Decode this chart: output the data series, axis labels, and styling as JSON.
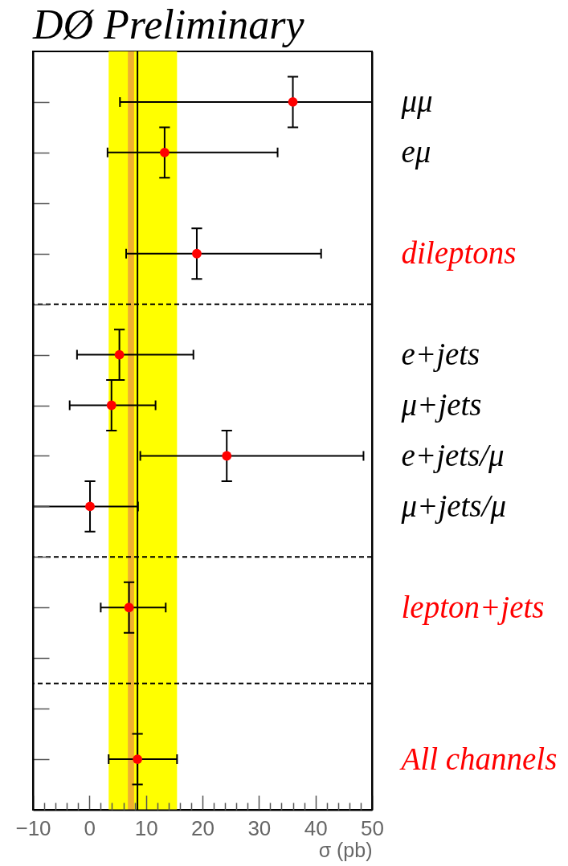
{
  "chart_data": {
    "type": "scatter",
    "orientation": "horizontal",
    "title": "DØ Preliminary",
    "xlabel": "σ (pb)",
    "categories": [
      "μμ",
      "eμ",
      null,
      "dileptons",
      null,
      "e+jets",
      "μ+jets",
      "e+jets/μ",
      "μ+jets/μ",
      null,
      "lepton+jets",
      null,
      null,
      "All channels"
    ],
    "series": [
      {
        "color": "#ff0000",
        "values": [
          36.0,
          13.3,
          null,
          null,
          null,
          5.3,
          3.9,
          24.3,
          0.1,
          null,
          null,
          null,
          null,
          null
        ],
        "errors": [
          [
            5.4,
            50
          ],
          [
            3.2,
            33.3
          ],
          null,
          null,
          null,
          [
            -2.2,
            18.4
          ],
          [
            -3.5,
            11.7
          ],
          [
            9.0,
            48.5
          ],
          [
            -10,
            8.6
          ],
          null,
          null,
          null,
          null,
          null
        ]
      },
      {
        "color": "#ff0000",
        "values": [
          null,
          null,
          null,
          19.0,
          null,
          null,
          null,
          null,
          null,
          null,
          7.0,
          null,
          null,
          8.5
        ],
        "errors": [
          null,
          null,
          null,
          [
            6.5,
            41.0
          ],
          null,
          null,
          null,
          null,
          null,
          null,
          [
            2.0,
            13.5
          ],
          null,
          null,
          [
            3.4,
            15.5
          ]
        ]
      }
    ],
    "xlim": [
      -10,
      50
    ],
    "xticks": [
      -10,
      {
        "value": -8,
        "label": null
      },
      {
        "value": -6,
        "label": null
      },
      {
        "value": -4,
        "label": null
      },
      {
        "value": -2,
        "label": null
      },
      0,
      {
        "value": 2,
        "label": null
      },
      {
        "value": 4,
        "label": null
      },
      {
        "value": 6,
        "label": null
      },
      {
        "value": 8,
        "label": null
      },
      10,
      {
        "value": 12,
        "label": null
      },
      {
        "value": 14,
        "label": null
      },
      {
        "value": 16,
        "label": null
      },
      {
        "value": 18,
        "label": null
      },
      20,
      {
        "value": 22,
        "label": null
      },
      {
        "value": 24,
        "label": null
      },
      {
        "value": 26,
        "label": null
      },
      {
        "value": 28,
        "label": null
      },
      30,
      {
        "value": 32,
        "label": null
      },
      {
        "value": 34,
        "label": null
      },
      {
        "value": 36,
        "label": null
      },
      {
        "value": 38,
        "label": null
      },
      40,
      {
        "value": 42,
        "label": null
      },
      {
        "value": 44,
        "label": null
      },
      {
        "value": 46,
        "label": null
      },
      {
        "value": 48,
        "label": null
      },
      50
    ],
    "bands": [
      {
        "axis": "x",
        "from": 3.4,
        "to": 15.5,
        "color": "#ffff00"
      },
      {
        "axis": "x",
        "from": 6.8,
        "to": 7.9,
        "color": "#f0b030"
      }
    ],
    "ref_lines": [
      {
        "axis": "x",
        "value": 8.5,
        "color": "#000000"
      }
    ],
    "marker": "circle"
  }
}
